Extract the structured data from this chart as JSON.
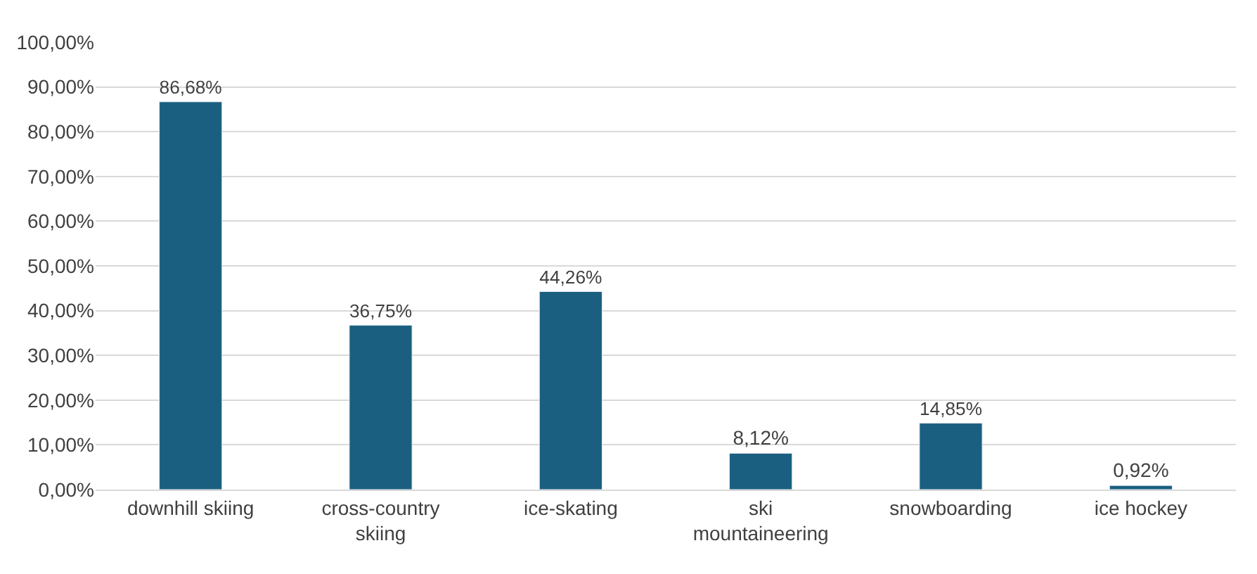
{
  "chart_data": {
    "type": "bar",
    "categories": [
      "downhill skiing",
      "cross-country skiing",
      "ice-skating",
      "ski mountaineering",
      "snowboarding",
      "ice hockey"
    ],
    "values": [
      86.68,
      36.75,
      44.26,
      8.12,
      14.85,
      0.92
    ],
    "value_labels": [
      "86,68%",
      "36,75%",
      "44,26%",
      "8,12%",
      "14,85%",
      "0,92%"
    ],
    "color": "#1a5f7f",
    "ylim": [
      0,
      100
    ],
    "yticks": [
      {
        "value": 0,
        "label": "0,00%"
      },
      {
        "value": 10,
        "label": "10,00%"
      },
      {
        "value": 20,
        "label": "20,00%"
      },
      {
        "value": 30,
        "label": "30,00%"
      },
      {
        "value": 40,
        "label": "40,00%"
      },
      {
        "value": 50,
        "label": "50,00%"
      },
      {
        "value": 60,
        "label": "60,00%"
      },
      {
        "value": 70,
        "label": "70,00%"
      },
      {
        "value": 80,
        "label": "80,00%"
      },
      {
        "value": 90,
        "label": "90,00%"
      },
      {
        "value": 100,
        "label": "100,00%"
      }
    ],
    "grid": "y"
  }
}
